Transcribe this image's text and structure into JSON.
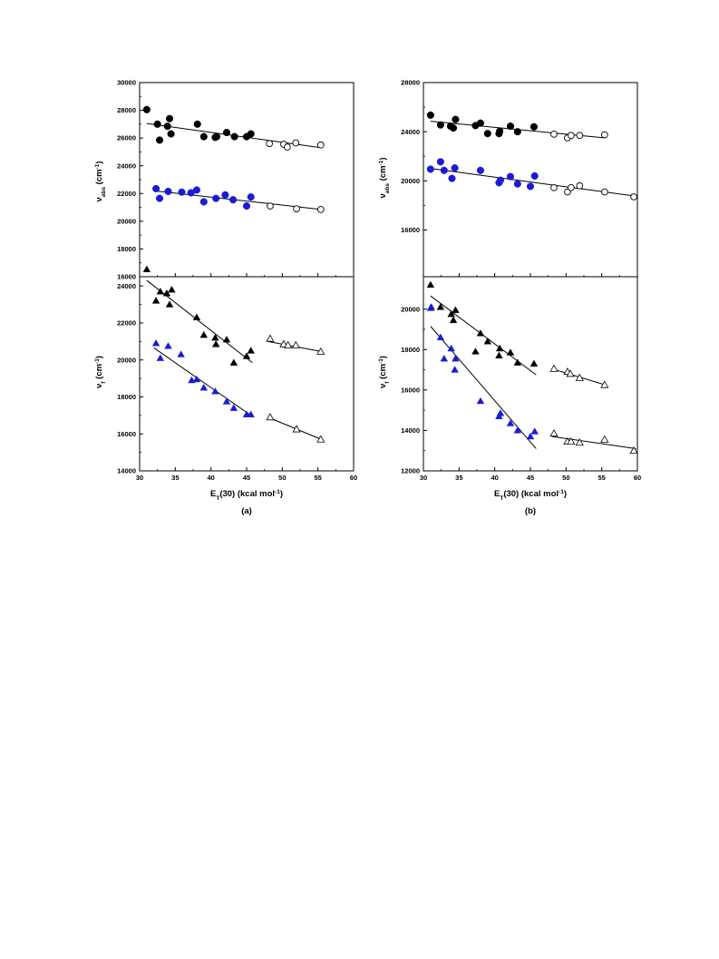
{
  "chart_data": [
    {
      "id": "a-top",
      "type": "scatter",
      "panel_label": "",
      "xlabel": "",
      "ylabel": "ν",
      "ylabel_sub": "abs",
      "ylabel_unit": " (cm",
      "ylabel_sup": "-1",
      "ylabel_close": ")",
      "xlim": [
        30,
        60
      ],
      "ylim": [
        16000,
        30000
      ],
      "xticks": [],
      "yticks": [
        "16000",
        "18000",
        "20000",
        "22000",
        "24000",
        "26000",
        "28000",
        "30000"
      ],
      "series": [
        {
          "marker": "circle",
          "fill": "#000000",
          "stroke": "#000000",
          "x": [
            31.0,
            32.5,
            32.8,
            33.9,
            34.2,
            34.4,
            38.1,
            39.0,
            40.6,
            40.8,
            42.2,
            43.3,
            45.0,
            45.6
          ],
          "y": [
            28050,
            27000,
            25850,
            26850,
            27400,
            26300,
            27000,
            26100,
            26050,
            26100,
            26400,
            26100,
            26100,
            26300
          ]
        },
        {
          "marker": "circle",
          "fill": "#ffffff",
          "stroke": "#000000",
          "x": [
            48.2,
            50.2,
            50.7,
            51.9,
            55.4
          ],
          "y": [
            25600,
            25550,
            25350,
            25650,
            25500
          ]
        },
        {
          "marker": "circle",
          "fill": "#1a1ad8",
          "stroke": "#1a1ad8",
          "x": [
            32.3,
            32.8,
            34.0,
            35.9,
            37.2,
            38.0,
            39.0,
            40.7,
            42.0,
            43.1,
            45.0,
            45.6
          ],
          "y": [
            22350,
            21650,
            22150,
            22100,
            22050,
            22250,
            21400,
            21650,
            21900,
            21550,
            21100,
            21750
          ]
        },
        {
          "marker": "circle",
          "fill": "#ffffff",
          "stroke": "#000000",
          "x": [
            48.3,
            52.0,
            55.4
          ],
          "y": [
            21100,
            20900,
            20850
          ]
        }
      ],
      "fit_lines": [
        {
          "x": [
            31,
            55.5
          ],
          "y": [
            27050,
            25300
          ]
        },
        {
          "x": [
            32,
            55.5
          ],
          "y": [
            22200,
            20850
          ]
        }
      ]
    },
    {
      "id": "a-bottom",
      "type": "scatter",
      "panel_label": "(a)",
      "xlabel": "E",
      "xlabel_sub": "T",
      "xlabel_rest": "(30) (kcal mol",
      "xlabel_sup": "-1",
      "xlabel_close": ")",
      "ylabel": "ν",
      "ylabel_sub": "f",
      "ylabel_unit": " (cm",
      "ylabel_sup": "-1",
      "ylabel_close": ")",
      "xlim": [
        30,
        60
      ],
      "ylim": [
        14000,
        24500
      ],
      "xticks": [
        "30",
        "35",
        "40",
        "45",
        "50",
        "55",
        "60"
      ],
      "yticks": [
        "14000",
        "16000",
        "18000",
        "20000",
        "22000",
        "24000"
      ],
      "series": [
        {
          "marker": "triangle",
          "fill": "#000000",
          "stroke": "#000000",
          "x": [
            31.0,
            32.3,
            32.9,
            33.8,
            34.2,
            34.5,
            38.0,
            39.0,
            40.6,
            40.7,
            42.2,
            43.2,
            45.0,
            45.6
          ],
          "y": [
            24900,
            23200,
            23700,
            23600,
            23000,
            23800,
            22300,
            21350,
            21200,
            20850,
            21100,
            19850,
            20200,
            20500
          ]
        },
        {
          "marker": "triangle",
          "fill": "#ffffff",
          "stroke": "#000000",
          "x": [
            48.3,
            50.2,
            50.8,
            51.9,
            55.4
          ],
          "y": [
            21150,
            20850,
            20800,
            20800,
            20450
          ]
        },
        {
          "marker": "triangle",
          "fill": "#1a1ad8",
          "stroke": "#1a1ad8",
          "x": [
            32.3,
            32.9,
            34.0,
            35.8,
            37.3,
            38.0,
            39.0,
            40.6,
            42.2,
            43.2,
            45.0,
            45.6
          ],
          "y": [
            20900,
            20100,
            20750,
            20300,
            18900,
            18950,
            18500,
            18300,
            17750,
            17400,
            17050,
            17050
          ]
        },
        {
          "marker": "triangle",
          "fill": "#ffffff",
          "stroke": "#000000",
          "x": [
            48.3,
            52.0,
            55.4
          ],
          "y": [
            16900,
            16250,
            15700
          ]
        }
      ],
      "fit_lines": [
        {
          "x": [
            31,
            45.8
          ],
          "y": [
            24300,
            19850
          ]
        },
        {
          "x": [
            32,
            45.8
          ],
          "y": [
            20650,
            16950
          ]
        },
        {
          "x": [
            48,
            55.5
          ],
          "y": [
            21000,
            20450
          ]
        },
        {
          "x": [
            48,
            55.5
          ],
          "y": [
            16900,
            15700
          ]
        }
      ]
    },
    {
      "id": "b-top",
      "type": "scatter",
      "panel_label": "",
      "xlabel": "",
      "ylabel": "ν",
      "ylabel_sub": "abs",
      "ylabel_unit": " (cm",
      "ylabel_sup": "-1",
      "ylabel_close": ")",
      "xlim": [
        30,
        60
      ],
      "ylim": [
        12000,
        28000
      ],
      "xticks": [],
      "yticks": [
        "16000",
        "20000",
        "24000",
        "28000"
      ],
      "series": [
        {
          "marker": "circle",
          "fill": "#000000",
          "stroke": "#000000",
          "x": [
            31.0,
            32.4,
            33.8,
            34.2,
            34.5,
            37.3,
            38.0,
            39.0,
            40.6,
            40.7,
            42.2,
            43.2,
            45.5
          ],
          "y": [
            25350,
            24550,
            24450,
            24300,
            25000,
            24500,
            24700,
            23850,
            23850,
            24050,
            24450,
            24000,
            24400
          ]
        },
        {
          "marker": "circle",
          "fill": "#ffffff",
          "stroke": "#000000",
          "x": [
            48.3,
            50.2,
            50.7,
            51.9,
            55.4
          ],
          "y": [
            23800,
            23500,
            23700,
            23700,
            23750
          ]
        },
        {
          "marker": "circle",
          "fill": "#1a1ad8",
          "stroke": "#1a1ad8",
          "x": [
            31.0,
            32.4,
            32.9,
            34.0,
            34.4,
            38.0,
            40.6,
            40.8,
            42.2,
            43.2,
            45.0,
            45.6
          ],
          "y": [
            20950,
            21550,
            20850,
            20200,
            21050,
            20850,
            19850,
            20050,
            20350,
            19750,
            19550,
            20400
          ]
        },
        {
          "marker": "circle",
          "fill": "#ffffff",
          "stroke": "#000000",
          "x": [
            48.3,
            50.2,
            50.7,
            51.9,
            55.4,
            59.5
          ],
          "y": [
            19450,
            19100,
            19450,
            19600,
            19100,
            18700
          ]
        }
      ],
      "fit_lines": [
        {
          "x": [
            31,
            55.5
          ],
          "y": [
            24850,
            23500
          ]
        },
        {
          "x": [
            30.5,
            59.8
          ],
          "y": [
            21050,
            18750
          ]
        }
      ]
    },
    {
      "id": "b-bottom",
      "type": "scatter",
      "panel_label": "(b)",
      "xlabel": "E",
      "xlabel_sub": "T",
      "xlabel_rest": "(30) (kcal mol",
      "xlabel_sup": "-1",
      "xlabel_close": ")",
      "ylabel": "ν",
      "ylabel_sub": "f",
      "ylabel_unit": " (cm",
      "ylabel_sup": "-1",
      "ylabel_close": ")",
      "xlim": [
        30,
        60
      ],
      "ylim": [
        12000,
        21000
      ],
      "xticks": [
        "30",
        "35",
        "40",
        "45",
        "50",
        "55",
        "60"
      ],
      "yticks": [
        "12000",
        "14000",
        "16000",
        "18000",
        "20000"
      ],
      "series": [
        {
          "marker": "triangle",
          "fill": "#000000",
          "stroke": "#000000",
          "x": [
            31.0,
            32.4,
            33.9,
            34.2,
            34.5,
            37.3,
            38.0,
            39.0,
            40.6,
            40.7,
            42.2,
            43.2,
            45.5
          ],
          "y": [
            21200,
            20100,
            19750,
            19450,
            19950,
            17900,
            18800,
            18400,
            17700,
            18050,
            17850,
            17350,
            17300
          ]
        },
        {
          "marker": "triangle",
          "fill": "#ffffff",
          "stroke": "#000000",
          "x": [
            48.3,
            50.2,
            50.6,
            51.9,
            55.4
          ],
          "y": [
            17050,
            16900,
            16800,
            16600,
            16250
          ]
        },
        {
          "marker": "triangle",
          "fill": "#1a1ad8",
          "stroke": "#1a1ad8",
          "x": [
            31.0,
            31.1,
            32.4,
            32.9,
            33.9,
            34.4,
            34.5,
            38.0,
            40.6,
            40.8,
            42.2,
            43.2,
            45.0,
            45.6
          ],
          "y": [
            20050,
            20100,
            18600,
            17550,
            18050,
            17000,
            17550,
            15450,
            14700,
            14850,
            14350,
            14000,
            13700,
            13950
          ]
        },
        {
          "marker": "triangle",
          "fill": "#ffffff",
          "stroke": "#000000",
          "x": [
            48.3,
            50.2,
            50.7,
            51.9,
            55.4,
            59.5
          ],
          "y": [
            13850,
            13450,
            13450,
            13400,
            13550,
            13000
          ]
        }
      ],
      "fit_lines": [
        {
          "x": [
            31,
            45.8
          ],
          "y": [
            20650,
            16750
          ]
        },
        {
          "x": [
            31,
            45.8
          ],
          "y": [
            19150,
            13100
          ]
        },
        {
          "x": [
            48,
            55.5
          ],
          "y": [
            17050,
            16250
          ]
        },
        {
          "x": [
            48,
            59.8
          ],
          "y": [
            13700,
            13100
          ]
        }
      ]
    }
  ]
}
